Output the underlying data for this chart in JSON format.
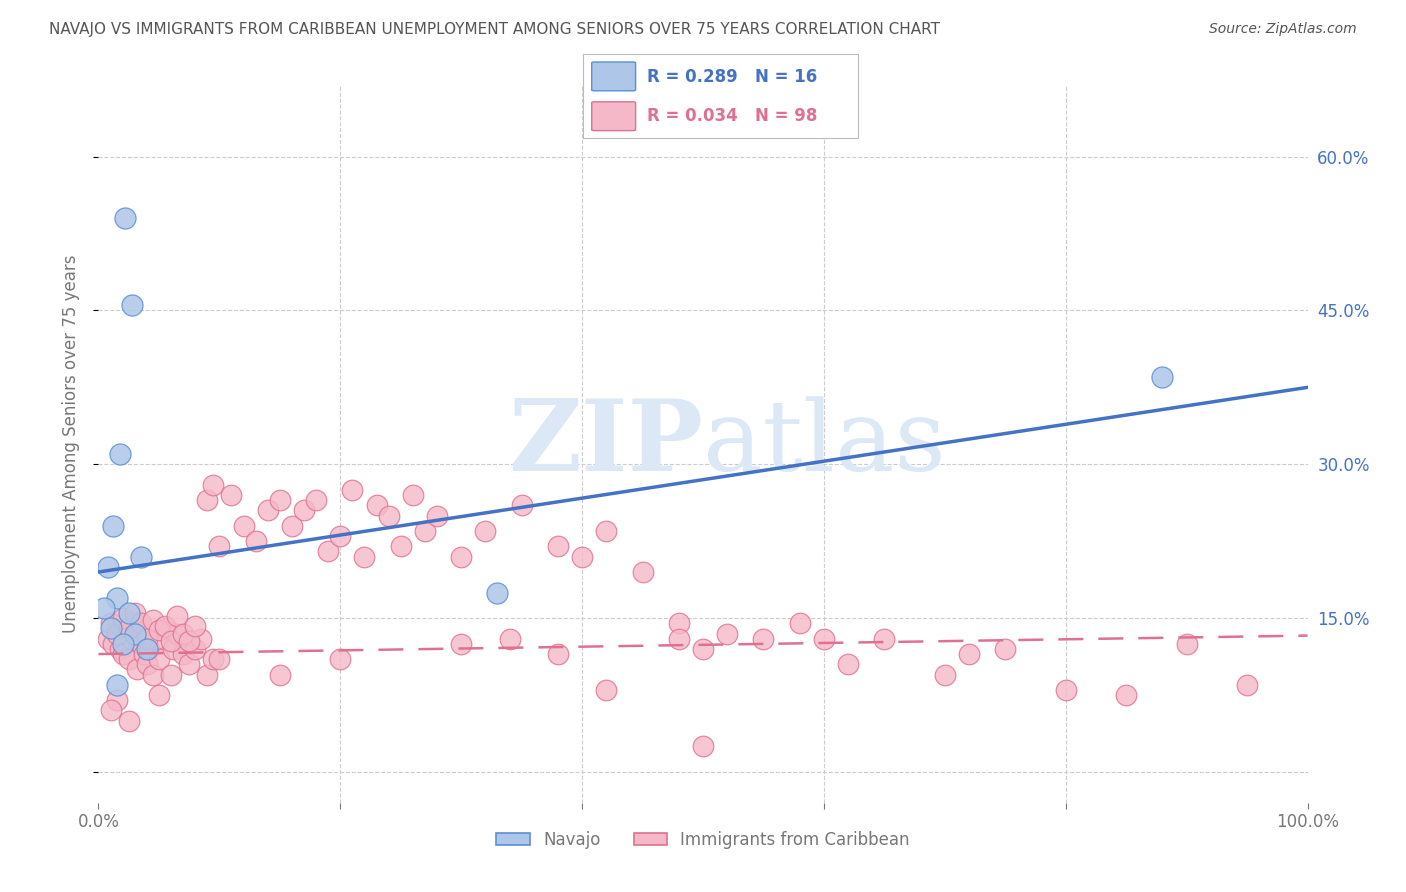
{
  "title": "NAVAJO VS IMMIGRANTS FROM CARIBBEAN UNEMPLOYMENT AMONG SENIORS OVER 75 YEARS CORRELATION CHART",
  "source": "Source: ZipAtlas.com",
  "ylabel": "Unemployment Among Seniors over 75 years",
  "xlim": [
    0,
    1.0
  ],
  "ylim": [
    -0.03,
    0.67
  ],
  "navajo_R": 0.289,
  "navajo_N": 16,
  "carib_R": 0.034,
  "carib_N": 98,
  "navajo_color": "#aec6e8",
  "navajo_edge_color": "#5b8fd4",
  "navajo_line_color": "#4472c4",
  "carib_color": "#f5b8c8",
  "carib_edge_color": "#e07090",
  "carib_line_color": "#e07090",
  "navajo_x": [
    0.022,
    0.028,
    0.018,
    0.012,
    0.035,
    0.008,
    0.015,
    0.005,
    0.025,
    0.01,
    0.03,
    0.02,
    0.04,
    0.015,
    0.33,
    0.88
  ],
  "navajo_y": [
    0.54,
    0.455,
    0.31,
    0.24,
    0.21,
    0.2,
    0.17,
    0.16,
    0.155,
    0.14,
    0.135,
    0.125,
    0.12,
    0.085,
    0.175,
    0.385
  ],
  "carib_x": [
    0.008,
    0.012,
    0.015,
    0.018,
    0.02,
    0.022,
    0.025,
    0.028,
    0.03,
    0.032,
    0.035,
    0.038,
    0.04,
    0.042,
    0.045,
    0.048,
    0.05,
    0.055,
    0.06,
    0.062,
    0.065,
    0.07,
    0.075,
    0.08,
    0.085,
    0.09,
    0.095,
    0.01,
    0.015,
    0.02,
    0.025,
    0.03,
    0.035,
    0.04,
    0.045,
    0.05,
    0.055,
    0.06,
    0.065,
    0.07,
    0.075,
    0.08,
    0.09,
    0.095,
    0.1,
    0.11,
    0.12,
    0.13,
    0.14,
    0.15,
    0.16,
    0.17,
    0.18,
    0.19,
    0.2,
    0.21,
    0.22,
    0.23,
    0.24,
    0.25,
    0.26,
    0.27,
    0.28,
    0.3,
    0.32,
    0.34,
    0.35,
    0.38,
    0.4,
    0.42,
    0.45,
    0.48,
    0.5,
    0.52,
    0.55,
    0.58,
    0.6,
    0.62,
    0.65,
    0.7,
    0.72,
    0.75,
    0.8,
    0.85,
    0.9,
    0.95,
    0.48,
    0.5,
    0.38,
    0.42,
    0.3,
    0.2,
    0.15,
    0.1,
    0.05,
    0.025,
    0.015,
    0.01
  ],
  "carib_y": [
    0.13,
    0.125,
    0.14,
    0.12,
    0.115,
    0.135,
    0.11,
    0.13,
    0.145,
    0.1,
    0.125,
    0.115,
    0.105,
    0.12,
    0.095,
    0.13,
    0.11,
    0.14,
    0.095,
    0.12,
    0.135,
    0.115,
    0.105,
    0.12,
    0.13,
    0.095,
    0.11,
    0.145,
    0.135,
    0.15,
    0.14,
    0.155,
    0.145,
    0.13,
    0.148,
    0.138,
    0.142,
    0.128,
    0.152,
    0.135,
    0.128,
    0.142,
    0.265,
    0.28,
    0.22,
    0.27,
    0.24,
    0.225,
    0.255,
    0.265,
    0.24,
    0.255,
    0.265,
    0.215,
    0.23,
    0.275,
    0.21,
    0.26,
    0.25,
    0.22,
    0.27,
    0.235,
    0.25,
    0.21,
    0.235,
    0.13,
    0.26,
    0.22,
    0.21,
    0.235,
    0.195,
    0.145,
    0.12,
    0.135,
    0.13,
    0.145,
    0.13,
    0.105,
    0.13,
    0.095,
    0.115,
    0.12,
    0.08,
    0.075,
    0.125,
    0.085,
    0.13,
    0.025,
    0.115,
    0.08,
    0.125,
    0.11,
    0.095,
    0.11,
    0.075,
    0.05,
    0.07,
    0.06
  ],
  "background_color": "#ffffff",
  "grid_color": "#cccccc",
  "title_color": "#555555",
  "axis_label_color": "#777777",
  "tick_color_right": "#4472c4",
  "watermark_zip": "ZIP",
  "watermark_atlas": "atlas",
  "watermark_color": "#dce8f5"
}
